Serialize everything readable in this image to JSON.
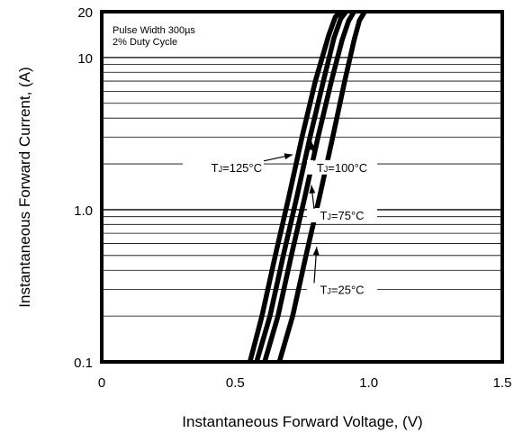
{
  "chart_data": {
    "type": "line",
    "title": "",
    "xlabel": "Instantaneous Forward Voltage, (V)",
    "ylabel": "Instantaneous Forward Current, (A)",
    "xlim": [
      0,
      1.5
    ],
    "ylim": [
      0.1,
      20
    ],
    "y_scale": "log",
    "x_ticks": [
      0,
      0.5,
      1.0,
      1.5
    ],
    "x_tick_labels": [
      "0",
      "0.5",
      "1.0",
      "1.5"
    ],
    "y_ticks": [
      0.1,
      1.0,
      10,
      20
    ],
    "y_tick_labels": [
      "0.1",
      "1.0",
      "10",
      "20"
    ],
    "grid": "horizontal-minor",
    "legend": "none",
    "annotations": [
      {
        "text": "Pulse Width 300µs",
        "position": "top-left"
      },
      {
        "text": "2% Duty Cycle",
        "position": "top-left"
      }
    ],
    "series": [
      {
        "name": "TJ=125°C",
        "label_prefix": "T",
        "label_sub": "J",
        "label_suffix": "=125°C",
        "x": [
          0.555,
          0.6,
          0.65,
          0.7,
          0.75,
          0.8,
          0.85,
          0.875,
          0.895
        ],
        "y": [
          0.1,
          0.2,
          0.5,
          1.2,
          3.0,
          7.0,
          14.0,
          18.5,
          20.0
        ]
      },
      {
        "name": "TJ=100°C",
        "label_prefix": "T",
        "label_sub": "J",
        "label_suffix": "=100°C",
        "x": [
          0.58,
          0.63,
          0.68,
          0.73,
          0.78,
          0.83,
          0.87,
          0.895,
          0.915
        ],
        "y": [
          0.1,
          0.2,
          0.5,
          1.2,
          3.0,
          7.0,
          13.5,
          18.0,
          20.0
        ]
      },
      {
        "name": "TJ=75°C",
        "label_prefix": "T",
        "label_sub": "J",
        "label_suffix": "=75°C",
        "x": [
          0.61,
          0.66,
          0.71,
          0.76,
          0.81,
          0.86,
          0.9,
          0.925,
          0.945
        ],
        "y": [
          0.1,
          0.2,
          0.5,
          1.2,
          3.0,
          7.0,
          13.0,
          17.5,
          20.0
        ]
      },
      {
        "name": "TJ=25°C",
        "label_prefix": "T",
        "label_sub": "J",
        "label_suffix": "=25°C",
        "x": [
          0.665,
          0.715,
          0.765,
          0.815,
          0.865,
          0.91,
          0.945,
          0.965,
          0.985
        ],
        "y": [
          0.1,
          0.2,
          0.5,
          1.2,
          3.0,
          7.0,
          13.0,
          17.5,
          20.0
        ]
      }
    ],
    "series_labels": [
      {
        "series": 0,
        "text_x": 0.6,
        "text_y": 1.9,
        "arrow_x": 0.715,
        "arrow_y": 2.3,
        "anchor": "end"
      },
      {
        "series": 1,
        "text_x": 0.9,
        "text_y": 1.9,
        "arrow_x": 0.785,
        "arrow_y": 2.8,
        "anchor": "middle"
      },
      {
        "series": 2,
        "text_x": 0.9,
        "text_y": 0.92,
        "arrow_x": 0.785,
        "arrow_y": 1.45,
        "anchor": "middle"
      },
      {
        "series": 3,
        "text_x": 0.9,
        "text_y": 0.3,
        "arrow_x": 0.805,
        "arrow_y": 0.57,
        "anchor": "middle"
      }
    ]
  }
}
